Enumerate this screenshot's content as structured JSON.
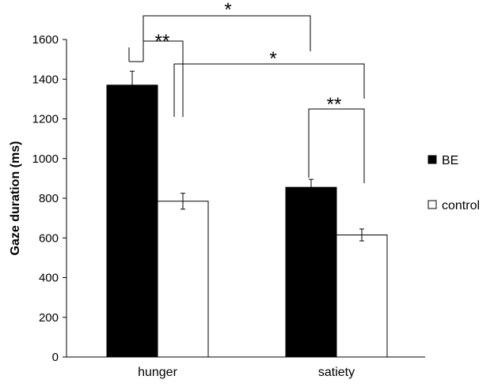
{
  "chart_data": {
    "type": "bar",
    "title": "",
    "xlabel": "",
    "ylabel": "Gaze duration (ms)",
    "ylim": [
      0,
      1600
    ],
    "yticks": [
      0,
      200,
      400,
      600,
      800,
      1000,
      1200,
      1400,
      1600
    ],
    "grid": false,
    "legend_position": "right",
    "categories": [
      "hunger",
      "satiety"
    ],
    "series": [
      {
        "name": "BE",
        "color": "#000000",
        "values": [
          1370,
          855
        ],
        "errors": [
          70,
          40
        ]
      },
      {
        "name": "control",
        "color": "#ffffff",
        "values": [
          785,
          615
        ],
        "errors": [
          40,
          30
        ]
      }
    ],
    "annotations": [
      {
        "label": "**",
        "type": "bracket",
        "from": "hunger BE",
        "to": "hunger control"
      },
      {
        "label": "*",
        "type": "bracket",
        "from": "hunger BE",
        "to": "satiety BE"
      },
      {
        "label": "*",
        "type": "bracket",
        "from": "hunger control",
        "to": "satiety control"
      },
      {
        "label": "**",
        "type": "bracket",
        "from": "satiety BE",
        "to": "satiety control"
      }
    ]
  }
}
